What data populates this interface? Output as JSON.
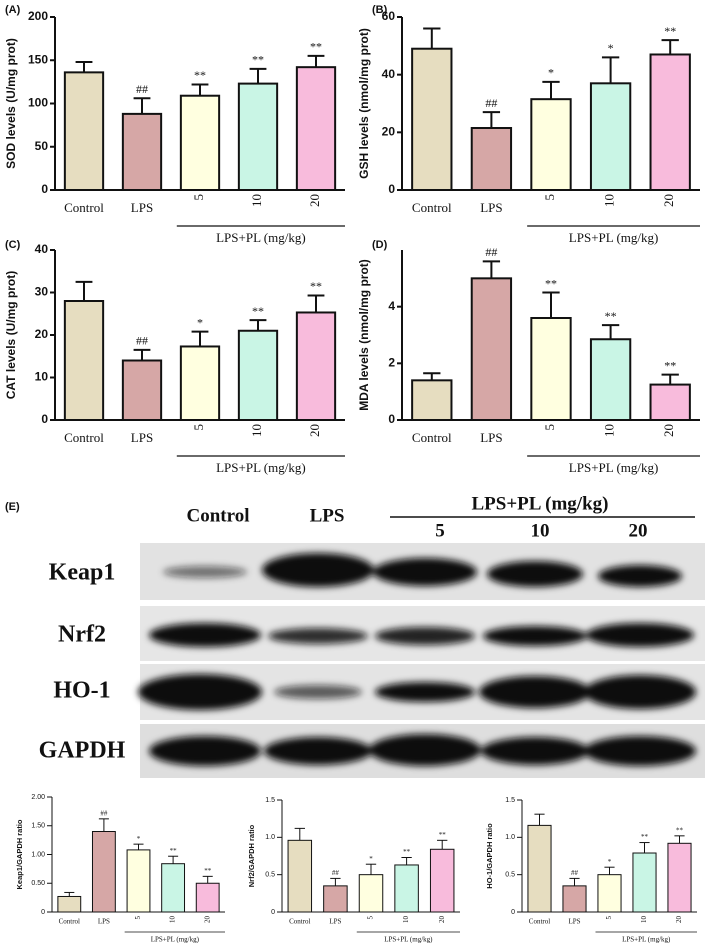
{
  "chart_data": [
    {
      "type": "bar",
      "label": "(A)",
      "ylabel": "SOD levels (U/mg prot)",
      "categories": [
        "Control",
        "LPS",
        "5",
        "10",
        "20"
      ],
      "group_label": "LPS+PL (mg/kg)",
      "values": [
        136,
        88,
        109,
        123,
        142
      ],
      "errors": [
        12,
        18,
        13,
        17,
        13
      ],
      "annotations": [
        null,
        "##",
        "**",
        "**",
        "**"
      ],
      "colors": [
        "#e6ddc0",
        "#d6a7a6",
        "#ffffe0",
        "#c9f5e5",
        "#f8bbdc"
      ],
      "ylim": [
        0,
        200
      ],
      "yticks": [
        0,
        50,
        100,
        150,
        200
      ]
    },
    {
      "type": "bar",
      "label": "(B)",
      "ylabel": "GSH levels (nmol/mg prot)",
      "categories": [
        "Control",
        "LPS",
        "5",
        "10",
        "20"
      ],
      "group_label": "LPS+PL (mg/kg)",
      "values": [
        49,
        21.5,
        31.5,
        37,
        47
      ],
      "errors": [
        7,
        5.5,
        6,
        9,
        5
      ],
      "annotations": [
        null,
        "##",
        "*",
        "*",
        "**"
      ],
      "colors": [
        "#e6ddc0",
        "#d6a7a6",
        "#ffffe0",
        "#c9f5e5",
        "#f8bbdc"
      ],
      "ylim": [
        0,
        60
      ],
      "yticks": [
        0,
        20,
        40,
        60
      ]
    },
    {
      "type": "bar",
      "label": "(C)",
      "ylabel": "CAT levels (U/mg prot)",
      "categories": [
        "Control",
        "LPS",
        "5",
        "10",
        "20"
      ],
      "group_label": "LPS+PL (mg/kg)",
      "values": [
        28,
        14,
        17.3,
        21,
        25.3
      ],
      "errors": [
        4.5,
        2.5,
        3.5,
        2.5,
        4
      ],
      "annotations": [
        null,
        "##",
        "*",
        "**",
        "**"
      ],
      "colors": [
        "#e6ddc0",
        "#d6a7a6",
        "#ffffe0",
        "#c9f5e5",
        "#f8bbdc"
      ],
      "ylim": [
        0,
        40
      ],
      "yticks": [
        0,
        10,
        20,
        30,
        40
      ]
    },
    {
      "type": "bar",
      "label": "(D)",
      "ylabel": "MDA levels (nmol/mg prot)",
      "categories": [
        "Control",
        "LPS",
        "5",
        "10",
        "20"
      ],
      "group_label": "LPS+PL (mg/kg)",
      "values": [
        1.4,
        5.0,
        3.6,
        2.85,
        1.25
      ],
      "errors": [
        0.25,
        0.6,
        0.9,
        0.5,
        0.35
      ],
      "annotations": [
        null,
        "##",
        "**",
        "**",
        "**"
      ],
      "colors": [
        "#e6ddc0",
        "#d6a7a6",
        "#ffffe0",
        "#c9f5e5",
        "#f8bbdc"
      ],
      "ylim": [
        0,
        6
      ],
      "yticks": [
        0,
        2,
        4
      ]
    },
    {
      "type": "bar",
      "ylabel": "Keap1/GAPDH ratio",
      "categories": [
        "Control",
        "LPS",
        "5",
        "10",
        "20"
      ],
      "group_label": "LPS+PL (mg/kg)",
      "values": [
        0.27,
        1.4,
        1.08,
        0.84,
        0.5
      ],
      "errors": [
        0.07,
        0.22,
        0.1,
        0.13,
        0.12
      ],
      "annotations": [
        null,
        "##",
        "*",
        "**",
        "**"
      ],
      "colors": [
        "#e6ddc0",
        "#d6a7a6",
        "#ffffe0",
        "#c9f5e5",
        "#f8bbdc"
      ],
      "ylim": [
        0,
        2
      ],
      "yticks": [
        0,
        {
          "value": 0.5,
          "label": "0.50"
        },
        {
          "value": 1,
          "label": "1.00"
        },
        {
          "value": 1.5,
          "label": "1.50"
        },
        {
          "value": 2,
          "label": "2.00"
        }
      ]
    },
    {
      "type": "bar",
      "ylabel": "Nrf2/GAPDH ratio",
      "categories": [
        "Control",
        "LPS",
        "5",
        "10",
        "20"
      ],
      "group_label": "LPS+PL (mg/kg)",
      "values": [
        0.96,
        0.35,
        0.5,
        0.63,
        0.84
      ],
      "errors": [
        0.16,
        0.1,
        0.14,
        0.1,
        0.12
      ],
      "annotations": [
        null,
        "##",
        "*",
        "**",
        "**"
      ],
      "colors": [
        "#e6ddc0",
        "#d6a7a6",
        "#ffffe0",
        "#c9f5e5",
        "#f8bbdc"
      ],
      "ylim": [
        0,
        1.5
      ],
      "yticks": [
        0,
        0.5,
        {
          "value": 1,
          "label": "1.0"
        },
        1.5
      ]
    },
    {
      "type": "bar",
      "ylabel": "HO-1/GAPDH ratio",
      "categories": [
        "Control",
        "LPS",
        "5",
        "10",
        "20"
      ],
      "group_label": "LPS+PL (mg/kg)",
      "values": [
        1.16,
        0.35,
        0.5,
        0.79,
        0.92
      ],
      "errors": [
        0.15,
        0.1,
        0.1,
        0.14,
        0.1
      ],
      "annotations": [
        null,
        "##",
        "*",
        "**",
        "**"
      ],
      "colors": [
        "#e6ddc0",
        "#d6a7a6",
        "#ffffe0",
        "#c9f5e5",
        "#f8bbdc"
      ],
      "ylim": [
        0,
        1.5
      ],
      "yticks": [
        0,
        0.5,
        {
          "value": 1,
          "label": "1.0"
        },
        1.5
      ]
    }
  ],
  "blot": {
    "label": "(E)",
    "lanes": [
      "Control",
      "LPS"
    ],
    "group_label": "LPS+PL (mg/kg)",
    "doses": [
      "5",
      "10",
      "20"
    ],
    "rows": [
      "Keap1",
      "Nrf2",
      "HO-1",
      "GAPDH"
    ]
  }
}
